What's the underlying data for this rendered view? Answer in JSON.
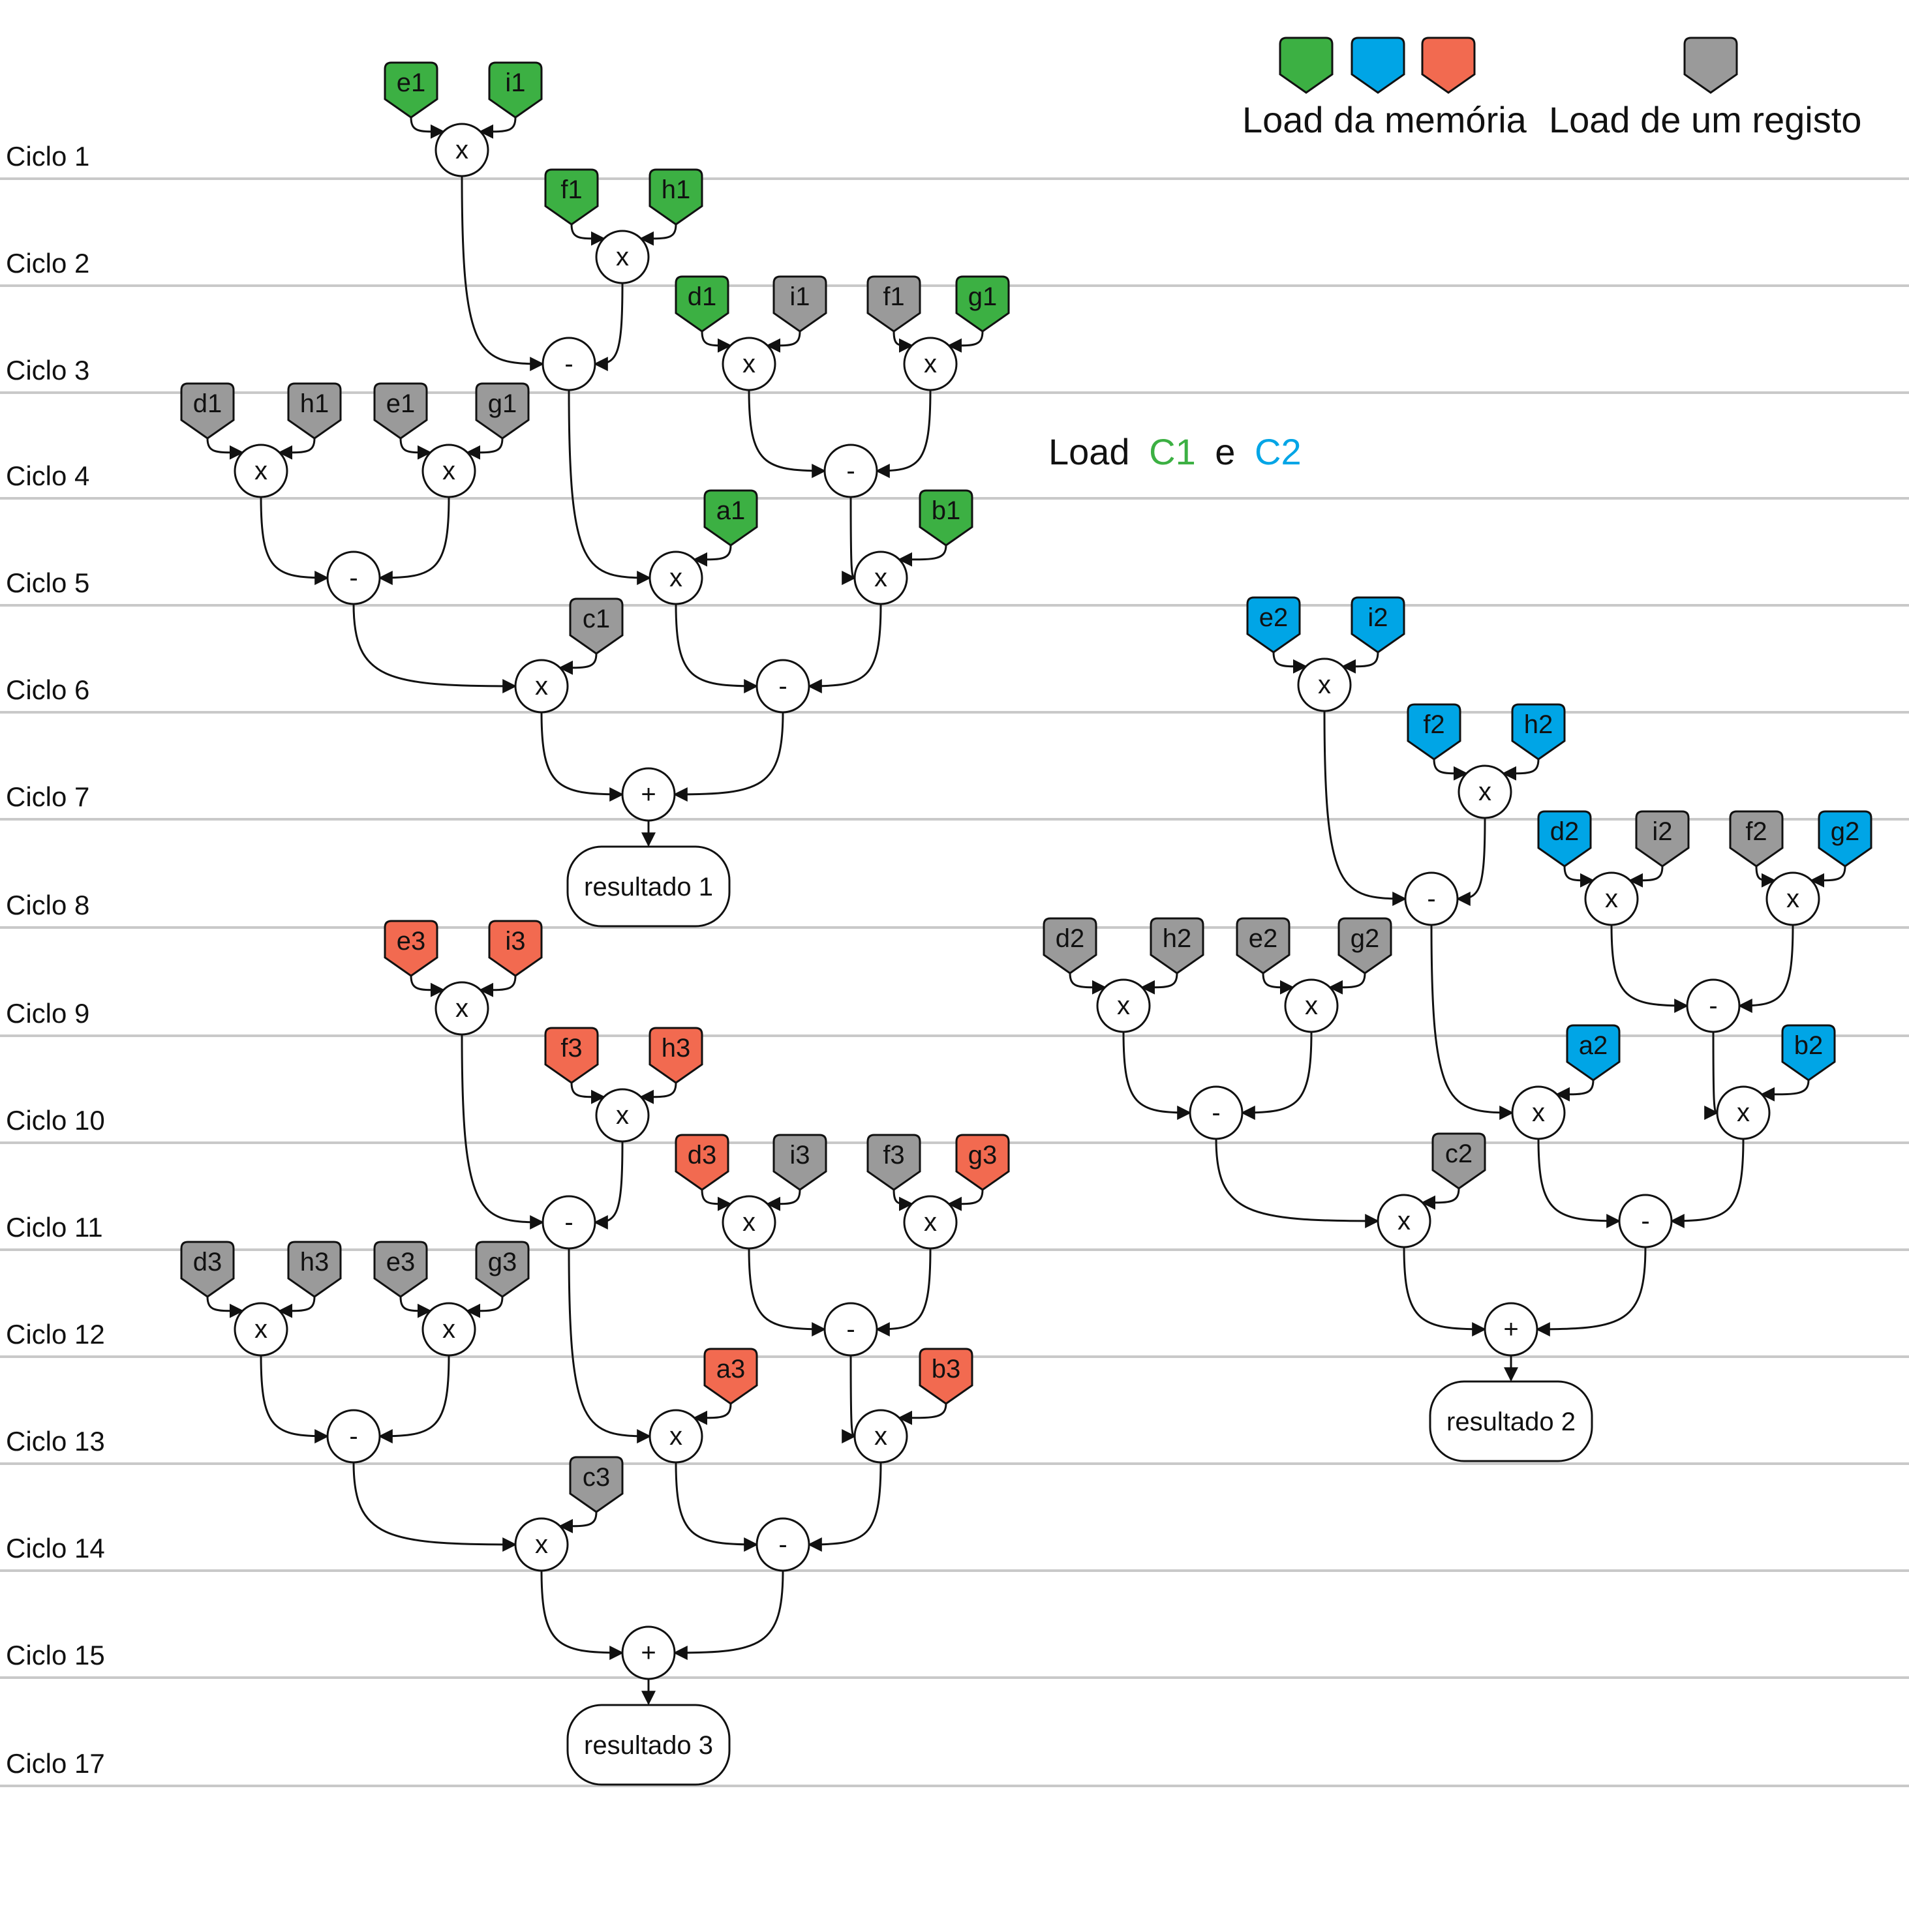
{
  "colors": {
    "memory_c1": "#3cb043",
    "memory_c2": "#00a5e6",
    "memory_c3": "#f26a50",
    "register": "#9a9a9a",
    "rule": "#c9c9c9",
    "stroke": "#111111"
  },
  "legend": {
    "memory_label": "Load da memória",
    "register_label": "Load de um registo"
  },
  "annotation": {
    "prefix": "Load",
    "c1": "C1",
    "middle": "e",
    "c2": "C2"
  },
  "cycles": [
    "Ciclo 1",
    "Ciclo 2",
    "Ciclo 3",
    "Ciclo 4",
    "Ciclo 5",
    "Ciclo 6",
    "Ciclo 7",
    "Ciclo 8",
    "Ciclo 9",
    "Ciclo 10",
    "Ciclo 11",
    "Ciclo 12",
    "Ciclo 13",
    "Ciclo 14",
    "Ciclo 15",
    "Ciclo 17"
  ],
  "results": [
    "resultado 1",
    "resultado 2",
    "resultado 3"
  ],
  "computations": [
    {
      "name": "computation-1",
      "loads": [
        {
          "t": "e1",
          "c": "mem"
        },
        {
          "t": "i1",
          "c": "mem"
        },
        {
          "t": "f1",
          "c": "mem"
        },
        {
          "t": "h1",
          "c": "mem"
        },
        {
          "t": "d1",
          "c": "mem"
        },
        {
          "t": "i1",
          "c": "reg"
        },
        {
          "t": "f1",
          "c": "reg"
        },
        {
          "t": "g1",
          "c": "mem"
        },
        {
          "t": "d1",
          "c": "reg"
        },
        {
          "t": "h1",
          "c": "reg"
        },
        {
          "t": "e1",
          "c": "reg"
        },
        {
          "t": "g1",
          "c": "reg"
        },
        {
          "t": "a1",
          "c": "mem"
        },
        {
          "t": "b1",
          "c": "mem"
        },
        {
          "t": "c1",
          "c": "reg"
        }
      ],
      "ops": [
        "x",
        "x",
        "-",
        "x",
        "x",
        "x",
        "x",
        "-",
        "-",
        "x",
        "x",
        "x",
        "-",
        "+"
      ]
    },
    {
      "name": "computation-2",
      "loads": [
        {
          "t": "e2",
          "c": "mem"
        },
        {
          "t": "i2",
          "c": "mem"
        },
        {
          "t": "f2",
          "c": "mem"
        },
        {
          "t": "h2",
          "c": "mem"
        },
        {
          "t": "d2",
          "c": "mem"
        },
        {
          "t": "i2",
          "c": "reg"
        },
        {
          "t": "f2",
          "c": "reg"
        },
        {
          "t": "g2",
          "c": "mem"
        },
        {
          "t": "d2",
          "c": "reg"
        },
        {
          "t": "h2",
          "c": "reg"
        },
        {
          "t": "e2",
          "c": "reg"
        },
        {
          "t": "g2",
          "c": "reg"
        },
        {
          "t": "a2",
          "c": "mem"
        },
        {
          "t": "b2",
          "c": "mem"
        },
        {
          "t": "c2",
          "c": "reg"
        }
      ],
      "ops": [
        "x",
        "x",
        "-",
        "x",
        "x",
        "x",
        "x",
        "-",
        "-",
        "x",
        "x",
        "x",
        "-",
        "+"
      ]
    },
    {
      "name": "computation-3",
      "loads": [
        {
          "t": "e3",
          "c": "mem"
        },
        {
          "t": "i3",
          "c": "mem"
        },
        {
          "t": "f3",
          "c": "mem"
        },
        {
          "t": "h3",
          "c": "mem"
        },
        {
          "t": "d3",
          "c": "mem"
        },
        {
          "t": "i3",
          "c": "reg"
        },
        {
          "t": "f3",
          "c": "reg"
        },
        {
          "t": "g3",
          "c": "mem"
        },
        {
          "t": "d3",
          "c": "reg"
        },
        {
          "t": "h3",
          "c": "reg"
        },
        {
          "t": "e3",
          "c": "reg"
        },
        {
          "t": "g3",
          "c": "reg"
        },
        {
          "t": "a3",
          "c": "mem"
        },
        {
          "t": "b3",
          "c": "mem"
        },
        {
          "t": "c3",
          "c": "reg"
        }
      ],
      "ops": [
        "x",
        "x",
        "-",
        "x",
        "x",
        "x",
        "x",
        "-",
        "-",
        "x",
        "x",
        "x",
        "-",
        "+"
      ]
    }
  ]
}
